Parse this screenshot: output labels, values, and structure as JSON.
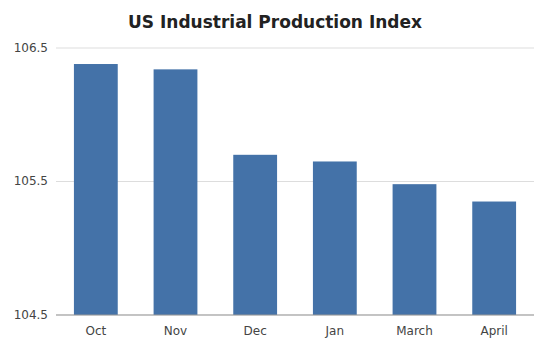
{
  "chart_data": {
    "type": "bar",
    "title": "US Industrial Production Index",
    "categories": [
      "Oct",
      "Nov",
      "Dec",
      "Jan",
      "March",
      "April"
    ],
    "values": [
      106.38,
      106.34,
      105.7,
      105.65,
      105.48,
      105.35
    ],
    "color": "#4472a8",
    "ylim": [
      104.5,
      106.5
    ],
    "yticks": [
      104.5,
      105.5,
      106.5
    ],
    "grid": true
  }
}
